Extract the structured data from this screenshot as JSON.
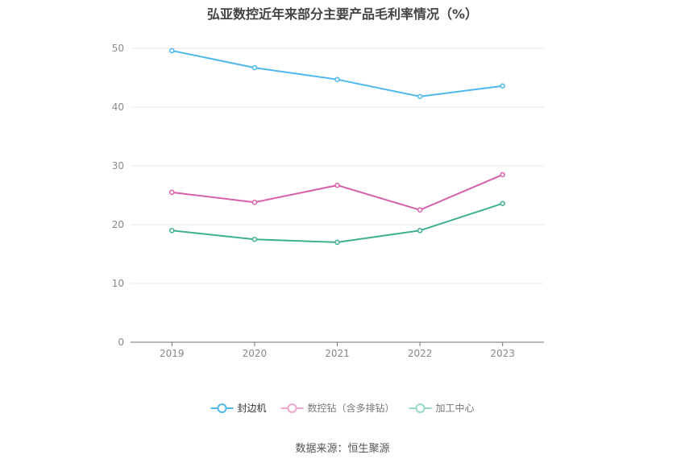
{
  "title": "弘亚数控近年来部分主要产品毛利率情况（%）",
  "source": "数据来源：恒生聚源",
  "chart_data": {
    "type": "line",
    "x": [
      "2019",
      "2020",
      "2021",
      "2022",
      "2023"
    ],
    "ylim": [
      0,
      50
    ],
    "yticks": [
      0,
      10,
      20,
      30,
      40,
      50
    ],
    "grid": true,
    "legend_position": "bottom",
    "series": [
      {
        "name": "封边机",
        "color": "#4db8ec",
        "values": [
          49.6,
          46.7,
          44.7,
          41.8,
          43.6
        ]
      },
      {
        "name": "数控钻（含多排钻）",
        "color": "#d660a9",
        "values": [
          25.5,
          23.8,
          26.7,
          22.5,
          28.5
        ]
      },
      {
        "name": "加工中心",
        "color": "#3db092",
        "values": [
          19.0,
          17.5,
          17.0,
          19.0,
          23.6
        ]
      }
    ]
  }
}
